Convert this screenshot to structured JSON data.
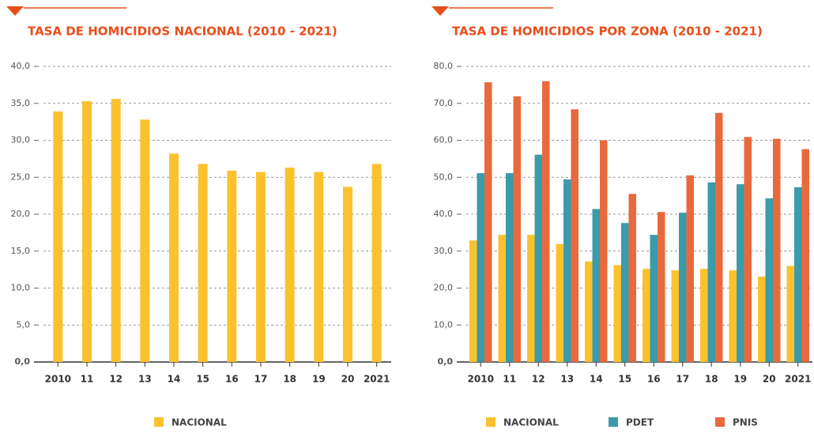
{
  "chart_data": [
    {
      "type": "bar",
      "title": "TASA DE HOMICIDIOS NACIONAL (2010 - 2021)",
      "categories": [
        "2010",
        "11",
        "12",
        "13",
        "14",
        "15",
        "16",
        "17",
        "18",
        "19",
        "20",
        "2021"
      ],
      "series": [
        {
          "name": "NACIONAL",
          "color": "#fbc22e",
          "values": [
            33.9,
            35.3,
            35.6,
            32.8,
            28.2,
            26.8,
            25.9,
            25.7,
            26.3,
            25.7,
            23.7,
            26.8
          ]
        }
      ],
      "ylim": [
        0,
        40
      ],
      "yticks": [
        {
          "value": 0,
          "label": "0,0"
        },
        {
          "value": 5,
          "label": "5,0"
        },
        {
          "value": 10,
          "label": "10,0"
        },
        {
          "value": 15,
          "label": "15,0"
        },
        {
          "value": 20,
          "label": "20,0"
        },
        {
          "value": 25,
          "label": "25,0"
        },
        {
          "value": 30,
          "label": "30,0"
        },
        {
          "value": 35,
          "label": "35,0"
        },
        {
          "value": 40,
          "label": "40,0"
        }
      ],
      "grid": true
    },
    {
      "type": "bar",
      "title": "TASA DE HOMICIDIOS POR ZONA (2010 - 2021)",
      "categories": [
        "2010",
        "11",
        "12",
        "13",
        "14",
        "15",
        "16",
        "17",
        "18",
        "19",
        "20",
        "2021"
      ],
      "series": [
        {
          "name": "NACIONAL",
          "color": "#fbc22e",
          "values": [
            32.9,
            34.4,
            34.4,
            31.9,
            27.2,
            26.2,
            25.2,
            24.8,
            25.2,
            24.8,
            23.1,
            26.0
          ]
        },
        {
          "name": "PDET",
          "color": "#3b9ba9",
          "values": [
            51.1,
            51.1,
            56.1,
            49.4,
            41.4,
            37.6,
            34.4,
            40.4,
            48.6,
            48.1,
            44.3,
            47.3
          ]
        },
        {
          "name": "PNIS",
          "color": "#e9693d",
          "values": [
            75.7,
            71.9,
            76.0,
            68.4,
            60.0,
            45.5,
            40.6,
            50.5,
            67.4,
            60.9,
            60.4,
            57.6
          ]
        }
      ],
      "ylim": [
        0,
        80
      ],
      "yticks": [
        {
          "value": 0,
          "label": "0,0"
        },
        {
          "value": 10,
          "label": "10,0"
        },
        {
          "value": 20,
          "label": "20,0"
        },
        {
          "value": 30,
          "label": "30,0"
        },
        {
          "value": 40,
          "label": "40,0"
        },
        {
          "value": 50,
          "label": "50,0"
        },
        {
          "value": 60,
          "label": "60,0"
        },
        {
          "value": 70,
          "label": "70,0"
        },
        {
          "value": 80,
          "label": "80,0"
        }
      ],
      "grid": true
    }
  ]
}
